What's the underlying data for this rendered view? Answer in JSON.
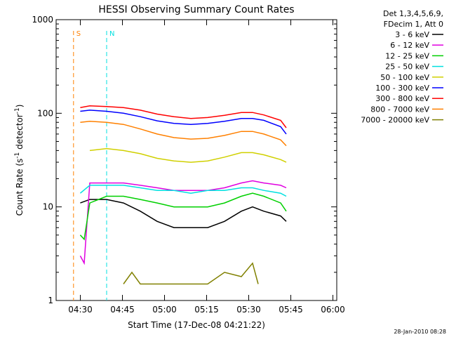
{
  "chart_data": {
    "type": "line",
    "title": "HESSI Observing Summary Count Rates",
    "xlabel": "Start Time (17-Dec-08 04:21:22)",
    "ylabel_main": "Count Rate (s",
    "ylabel_sup1": "-1",
    "ylabel_mid": " detector",
    "ylabel_sup2": "-1",
    "ylabel_end": ")",
    "y_scale": "log",
    "ylim": [
      1,
      1000
    ],
    "x_range_minutes": [
      -21.37,
      3.0
    ],
    "x_ticks": [
      {
        "label": "04:30",
        "value": 8.63
      },
      {
        "label": "04:45",
        "value": 23.63
      },
      {
        "label": "05:00",
        "value": 38.63
      },
      {
        "label": "05:15",
        "value": 53.63
      },
      {
        "label": "05:30",
        "value": 68.63
      },
      {
        "label": "05:45",
        "value": 83.63
      },
      {
        "label": "06:00",
        "value": 98.63
      }
    ],
    "x_domain": [
      0,
      100
    ],
    "y_ticks": [
      {
        "label": "1",
        "value": 1
      },
      {
        "label": "10",
        "value": 10
      },
      {
        "label": "100",
        "value": 100
      },
      {
        "label": "1000",
        "value": 1000
      }
    ],
    "legend_header": [
      "Det 1,3,4,5,6,9,",
      "FDecim 1, Att 0"
    ],
    "legend_placement": "right",
    "series": [
      {
        "name": "3 - 6 keV",
        "color": "#000000",
        "points": [
          [
            8.6,
            11
          ],
          [
            12,
            12
          ],
          [
            18,
            12
          ],
          [
            24,
            11
          ],
          [
            30,
            9
          ],
          [
            36,
            7
          ],
          [
            42,
            6
          ],
          [
            48,
            6
          ],
          [
            54,
            6
          ],
          [
            60,
            7
          ],
          [
            66,
            9
          ],
          [
            70,
            10
          ],
          [
            74,
            9
          ],
          [
            80,
            8
          ],
          [
            82,
            7
          ]
        ]
      },
      {
        "name": "6 - 12 keV",
        "color": "#e000e0",
        "points": [
          [
            8.6,
            3
          ],
          [
            10,
            2.5
          ],
          [
            12,
            18
          ],
          [
            18,
            18
          ],
          [
            24,
            18
          ],
          [
            30,
            17
          ],
          [
            36,
            16
          ],
          [
            42,
            15
          ],
          [
            48,
            15
          ],
          [
            54,
            15
          ],
          [
            60,
            16
          ],
          [
            66,
            18
          ],
          [
            70,
            19
          ],
          [
            74,
            18
          ],
          [
            80,
            17
          ],
          [
            82,
            16
          ]
        ]
      },
      {
        "name": "12 - 25 keV",
        "color": "#00d000",
        "points": [
          [
            8.6,
            5
          ],
          [
            10,
            4.5
          ],
          [
            12,
            11
          ],
          [
            18,
            13
          ],
          [
            24,
            13
          ],
          [
            30,
            12
          ],
          [
            36,
            11
          ],
          [
            42,
            10
          ],
          [
            48,
            10
          ],
          [
            54,
            10
          ],
          [
            60,
            11
          ],
          [
            66,
            13
          ],
          [
            70,
            14
          ],
          [
            74,
            13
          ],
          [
            80,
            11
          ],
          [
            82,
            9
          ]
        ]
      },
      {
        "name": "25 - 50 keV",
        "color": "#00e0e0",
        "points": [
          [
            8.6,
            14
          ],
          [
            12,
            17
          ],
          [
            18,
            17
          ],
          [
            24,
            17
          ],
          [
            30,
            16
          ],
          [
            36,
            15
          ],
          [
            42,
            15
          ],
          [
            48,
            14
          ],
          [
            54,
            15
          ],
          [
            60,
            15
          ],
          [
            66,
            16
          ],
          [
            70,
            16
          ],
          [
            74,
            15
          ],
          [
            80,
            14
          ],
          [
            82,
            13
          ]
        ]
      },
      {
        "name": "50 - 100 keV",
        "color": "#d0d000",
        "points": [
          [
            12,
            40
          ],
          [
            18,
            42
          ],
          [
            24,
            40
          ],
          [
            30,
            37
          ],
          [
            36,
            33
          ],
          [
            42,
            31
          ],
          [
            48,
            30
          ],
          [
            54,
            31
          ],
          [
            60,
            34
          ],
          [
            66,
            38
          ],
          [
            70,
            38
          ],
          [
            74,
            36
          ],
          [
            80,
            32
          ],
          [
            82,
            30
          ]
        ]
      },
      {
        "name": "100 - 300 keV",
        "color": "#0000ff",
        "points": [
          [
            8.6,
            105
          ],
          [
            12,
            108
          ],
          [
            18,
            105
          ],
          [
            24,
            100
          ],
          [
            30,
            92
          ],
          [
            36,
            83
          ],
          [
            42,
            78
          ],
          [
            48,
            76
          ],
          [
            54,
            78
          ],
          [
            60,
            82
          ],
          [
            66,
            88
          ],
          [
            70,
            88
          ],
          [
            74,
            84
          ],
          [
            80,
            72
          ],
          [
            82,
            60
          ]
        ]
      },
      {
        "name": "300 - 800 keV",
        "color": "#ff0000",
        "points": [
          [
            8.6,
            115
          ],
          [
            12,
            120
          ],
          [
            18,
            118
          ],
          [
            24,
            115
          ],
          [
            30,
            108
          ],
          [
            36,
            98
          ],
          [
            42,
            92
          ],
          [
            48,
            88
          ],
          [
            54,
            90
          ],
          [
            60,
            95
          ],
          [
            66,
            102
          ],
          [
            70,
            102
          ],
          [
            74,
            96
          ],
          [
            80,
            84
          ],
          [
            82,
            70
          ]
        ]
      },
      {
        "name": "800 - 7000 keV",
        "color": "#ff8000",
        "points": [
          [
            8.6,
            80
          ],
          [
            12,
            82
          ],
          [
            18,
            80
          ],
          [
            24,
            76
          ],
          [
            30,
            68
          ],
          [
            36,
            60
          ],
          [
            42,
            55
          ],
          [
            48,
            53
          ],
          [
            54,
            54
          ],
          [
            60,
            58
          ],
          [
            66,
            64
          ],
          [
            70,
            64
          ],
          [
            74,
            60
          ],
          [
            80,
            52
          ],
          [
            82,
            45
          ]
        ]
      },
      {
        "name": "7000 - 20000 keV",
        "color": "#808000",
        "points": [
          [
            24,
            1.5
          ],
          [
            27,
            2
          ],
          [
            30,
            1.5
          ],
          [
            54,
            1.5
          ],
          [
            60,
            2
          ],
          [
            66,
            1.8
          ],
          [
            70,
            2.5
          ],
          [
            72,
            1.5
          ]
        ]
      }
    ],
    "markers": [
      {
        "label": "S",
        "color": "#ff8000",
        "x_value": 6.2,
        "style": "dashed"
      },
      {
        "label": "N",
        "color": "#00e0e0",
        "x_value": 18.0,
        "style": "dashed"
      }
    ],
    "timestamp": "28-Jan-2010 08:28"
  }
}
